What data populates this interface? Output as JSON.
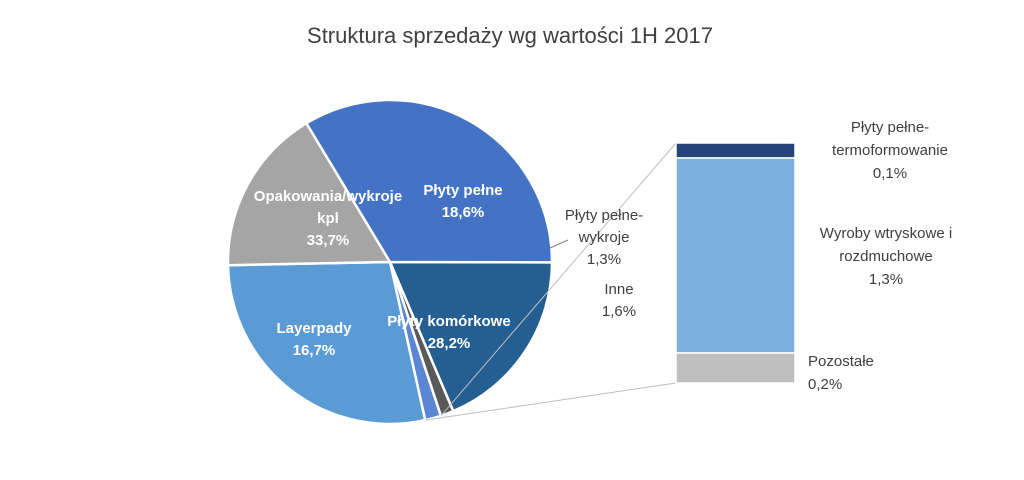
{
  "chart_data": {
    "type": "pie",
    "title": "Struktura sprzedaży wg wartości 1H 2017",
    "slices": [
      {
        "label": [
          "Płyty pełne"
        ],
        "value_label": "18,6%",
        "value": 18.6,
        "color": "#255E91"
      },
      {
        "label": [
          "Płyty pełne-",
          "wykroje"
        ],
        "value_label": "1,3%",
        "value": 1.3,
        "color": "#595959"
      },
      {
        "label": [
          "Inne"
        ],
        "value_label": "1,6%",
        "value": 1.6,
        "color": "#5B86D4"
      },
      {
        "label": [
          "Płyty komórkowe"
        ],
        "value_label": "28,2%",
        "value": 28.2,
        "color": "#5B9BD5"
      },
      {
        "label": [
          "Layerpady"
        ],
        "value_label": "16,7%",
        "value": 16.7,
        "color": "#A5A5A5"
      },
      {
        "label": [
          "Opakowania/wykroje",
          "kpl"
        ],
        "value_label": "33,7%",
        "value": 33.7,
        "color": "#4472C4"
      }
    ],
    "breakdown": {
      "of": "Inne",
      "segments": [
        {
          "label": [
            "Płyty pełne-",
            "termoformowanie"
          ],
          "value_label": "0,1%",
          "value": 0.1,
          "color": "#264478"
        },
        {
          "label": [
            "Wyroby wtryskowe i",
            "rozdmuchowe"
          ],
          "value_label": "1,3%",
          "value": 1.3,
          "color": "#7CAFDD"
        },
        {
          "label": [
            "Pozostałe"
          ],
          "value_label": "0,2%",
          "value": 0.2,
          "color": "#BFBFBF"
        }
      ]
    }
  }
}
